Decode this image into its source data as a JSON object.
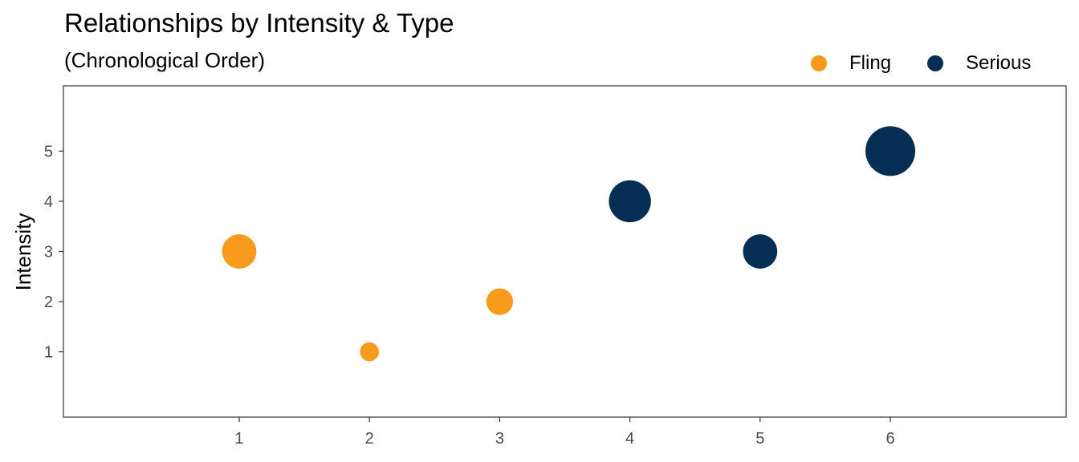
{
  "chart_data": {
    "type": "scatter",
    "title": "Relationships by Intensity & Type",
    "subtitle": "(Chronological Order)",
    "xlabel": "",
    "ylabel": "Intensity",
    "xlim": [
      -0.35,
      7.35
    ],
    "ylim": [
      -0.3,
      6.3
    ],
    "xticks": [
      1,
      2,
      3,
      4,
      5,
      6
    ],
    "yticks": [
      1,
      2,
      3,
      4,
      5
    ],
    "grid": false,
    "legend_position": "top-right",
    "legend": [
      {
        "name": "Fling",
        "color": "#F89B1C"
      },
      {
        "name": "Serious",
        "color": "#062E54"
      }
    ],
    "points": [
      {
        "x": 1,
        "y": 3,
        "size": 3,
        "type": "Fling"
      },
      {
        "x": 2,
        "y": 1,
        "size": 1,
        "type": "Fling"
      },
      {
        "x": 3,
        "y": 2,
        "size": 2,
        "type": "Fling"
      },
      {
        "x": 4,
        "y": 4,
        "size": 4,
        "type": "Serious"
      },
      {
        "x": 5,
        "y": 3,
        "size": 3,
        "type": "Serious"
      },
      {
        "x": 6,
        "y": 5,
        "size": 5,
        "type": "Serious"
      }
    ]
  }
}
